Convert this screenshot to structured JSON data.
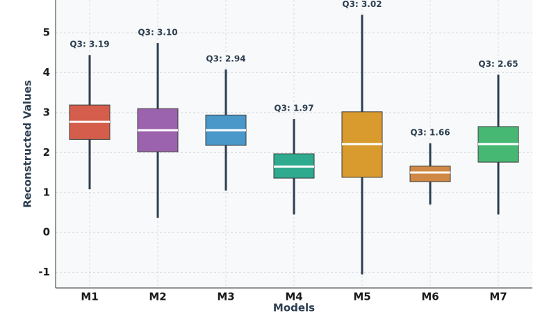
{
  "chart_data": {
    "type": "box",
    "x_label": "Models",
    "y_label": "Reconstructed Values",
    "categories": [
      "M1",
      "M2",
      "M3",
      "M4",
      "M5",
      "M6",
      "M7"
    ],
    "low": [
      1.08,
      0.37,
      1.05,
      0.45,
      -1.05,
      0.7,
      0.45
    ],
    "q1": [
      2.33,
      2.02,
      2.18,
      1.36,
      1.38,
      1.27,
      1.76
    ],
    "median": [
      2.77,
      2.56,
      2.56,
      1.65,
      2.21,
      1.5,
      2.21
    ],
    "q3": [
      3.19,
      3.1,
      2.94,
      1.97,
      3.02,
      1.66,
      2.65
    ],
    "q3_labels": [
      "Q3: 3.19",
      "Q3: 3.10",
      "Q3: 2.94",
      "Q3: 1.97",
      "Q3: 3.02",
      "Q3: 1.66",
      "Q3: 2.65"
    ],
    "high": [
      4.44,
      4.74,
      4.08,
      2.84,
      5.45,
      2.23,
      3.95
    ],
    "colors": [
      "#d45d4c",
      "#9b62ad",
      "#4a98c9",
      "#2eaa8f",
      "#d99a2e",
      "#cf8845",
      "#47b874"
    ],
    "ylim": [
      -1.39,
      5.82
    ],
    "yticks": [
      -1,
      0,
      1,
      2,
      3,
      4,
      5
    ],
    "grid": true
  }
}
